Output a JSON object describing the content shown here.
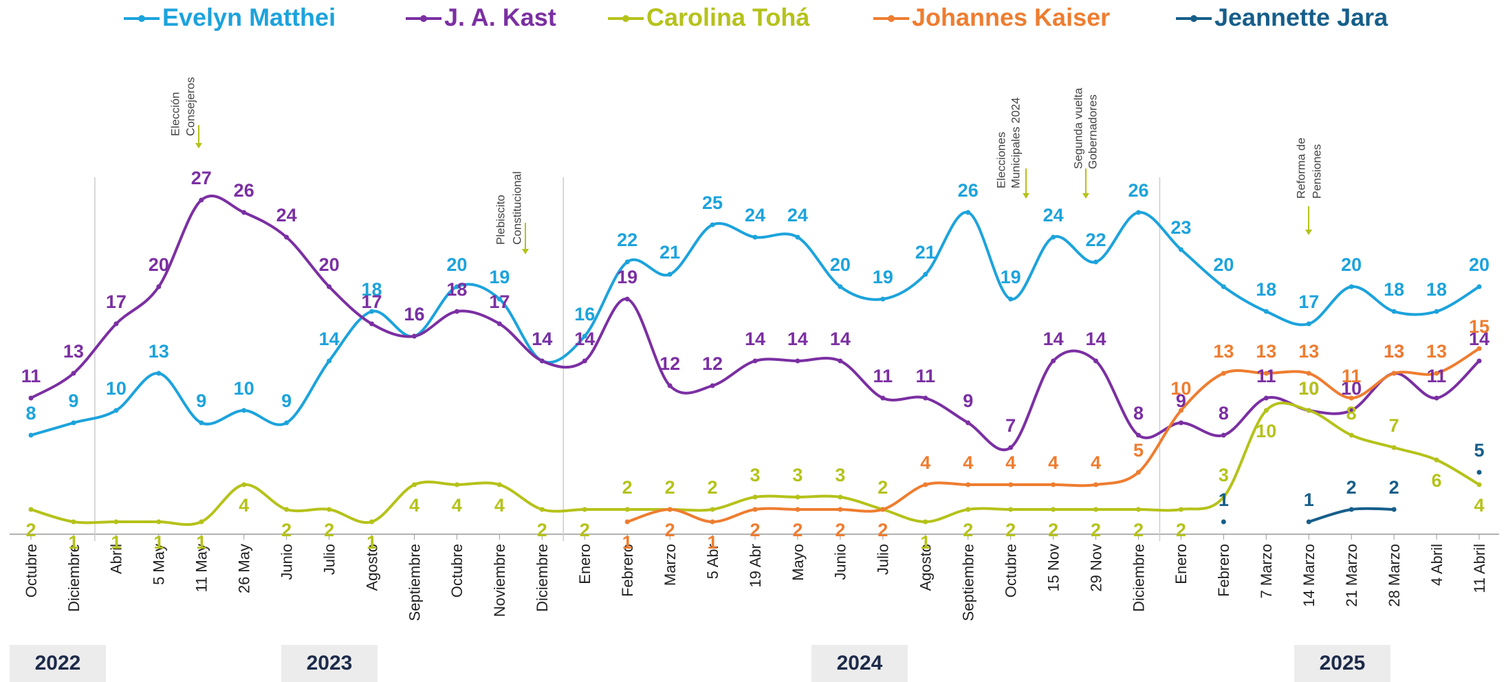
{
  "chart_data": {
    "type": "line",
    "categories": [
      "Octubre",
      "Diciembre",
      "Abril",
      "5 May",
      "11 May",
      "26 May",
      "Junio",
      "Julio",
      "Agosto",
      "Septiembre",
      "Octubre",
      "Noviembre",
      "Diciembre",
      "Enero",
      "Febrero",
      "Marzo",
      "5 Abr",
      "19 Abr",
      "Mayo",
      "Junio",
      "Julio",
      "Agosto",
      "Septiembre",
      "Octubre",
      "15 Nov",
      "29 Nov",
      "Diciembre",
      "Enero",
      "Febrero",
      "7 Marzo",
      "14 Marzo",
      "21 Marzo",
      "28 Marzo",
      "4 Abril",
      "11 Abril"
    ],
    "years": [
      "2022",
      "2023",
      "2024",
      "2025"
    ],
    "ylim": [
      0,
      28
    ],
    "series": [
      {
        "name": "Evelyn Matthei",
        "color": "#1ca3dc",
        "values": [
          8,
          9,
          10,
          13,
          9,
          10,
          9,
          14,
          18,
          16,
          20,
          19,
          14,
          16,
          22,
          21,
          25,
          24,
          24,
          20,
          19,
          21,
          26,
          19,
          24,
          22,
          26,
          23,
          20,
          18,
          17,
          20,
          18,
          18,
          20
        ]
      },
      {
        "name": "J. A. Kast",
        "color": "#7b2fa2",
        "values": [
          11,
          13,
          17,
          20,
          27,
          26,
          24,
          20,
          17,
          16,
          18,
          17,
          14,
          14,
          19,
          12,
          12,
          14,
          14,
          14,
          11,
          11,
          9,
          7,
          14,
          14,
          8,
          9,
          8,
          11,
          10,
          10,
          13,
          11,
          14
        ]
      },
      {
        "name": "Carolina Tohá",
        "color": "#b5c21a",
        "values": [
          2,
          1,
          1,
          1,
          1,
          4,
          2,
          2,
          1,
          4,
          4,
          4,
          2,
          2,
          2,
          2,
          2,
          3,
          3,
          3,
          2,
          1,
          2,
          2,
          2,
          2,
          2,
          2,
          3,
          10,
          10,
          8,
          7,
          6,
          4
        ]
      },
      {
        "name": "Johannes Kaiser",
        "color": "#ee7d30",
        "values": [
          null,
          null,
          null,
          null,
          null,
          null,
          null,
          null,
          null,
          null,
          null,
          null,
          null,
          null,
          1,
          2,
          1,
          2,
          2,
          2,
          2,
          4,
          4,
          4,
          4,
          4,
          5,
          10,
          13,
          13,
          13,
          11,
          13,
          13,
          15
        ]
      },
      {
        "name": "Jeannette Jara",
        "color": "#165e8a",
        "values": [
          null,
          null,
          null,
          null,
          null,
          null,
          null,
          null,
          null,
          null,
          null,
          null,
          null,
          null,
          null,
          null,
          null,
          null,
          null,
          null,
          null,
          null,
          null,
          null,
          null,
          null,
          null,
          null,
          1,
          null,
          1,
          2,
          2,
          null,
          5
        ]
      }
    ],
    "annotations": [
      {
        "lines": [
          "Elección",
          "Consejeros"
        ]
      },
      {
        "lines": [
          "Plebiscito",
          "Constitucional"
        ]
      },
      {
        "lines": [
          "Elecciones",
          "Municipales 2024"
        ]
      },
      {
        "lines": [
          "Segunda vuelta",
          "Gobernadores"
        ]
      },
      {
        "lines": [
          "Reforma de",
          "Pensiones"
        ]
      }
    ]
  }
}
